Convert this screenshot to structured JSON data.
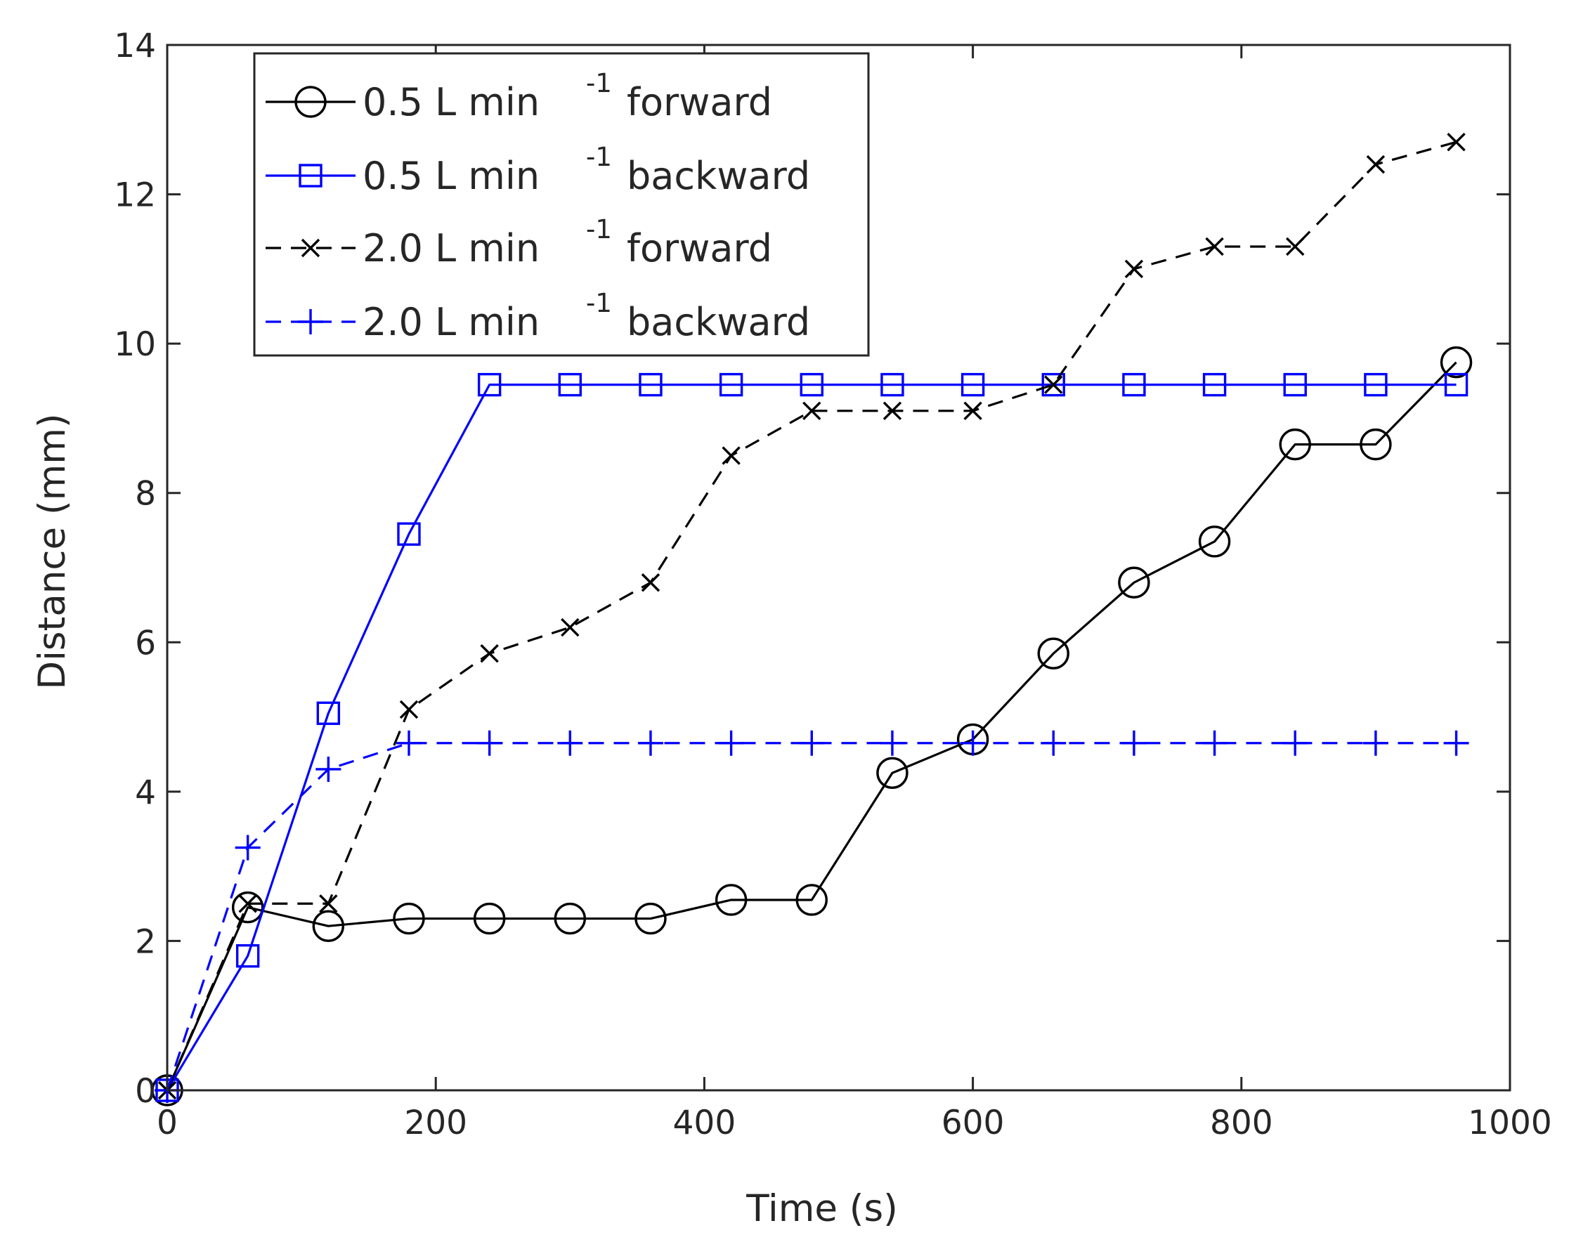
{
  "chart_data": {
    "type": "line",
    "xlabel": "Time (s)",
    "ylabel": "Distance (mm)",
    "xlim": [
      0,
      1000
    ],
    "ylim": [
      0,
      14
    ],
    "xticks": [
      0,
      200,
      400,
      600,
      800,
      1000
    ],
    "yticks": [
      0,
      2,
      4,
      6,
      8,
      10,
      12,
      14
    ],
    "grid": false,
    "legend_position": "top-left",
    "series": [
      {
        "name": "0.5 L min -1 forward",
        "label_main": "0.5 L min",
        "label_sup": "-1",
        "label_tail": "forward",
        "color": "#000000",
        "linestyle": "solid",
        "marker": "circle",
        "x": [
          0,
          60,
          120,
          180,
          240,
          300,
          360,
          420,
          480,
          540,
          600,
          660,
          720,
          780,
          840,
          900,
          960
        ],
        "y": [
          0,
          2.45,
          2.2,
          2.3,
          2.3,
          2.3,
          2.3,
          2.55,
          2.55,
          4.25,
          4.7,
          5.85,
          6.8,
          7.35,
          8.65,
          8.65,
          9.75
        ]
      },
      {
        "name": "0.5 L min -1 backward",
        "label_main": "0.5 L min",
        "label_sup": "-1",
        "label_tail": "backward",
        "color": "#0000ff",
        "linestyle": "solid",
        "marker": "square",
        "x": [
          0,
          60,
          120,
          180,
          240,
          300,
          360,
          420,
          480,
          540,
          600,
          660,
          720,
          780,
          840,
          900,
          960
        ],
        "y": [
          0,
          1.8,
          5.05,
          7.45,
          9.45,
          9.45,
          9.45,
          9.45,
          9.45,
          9.45,
          9.45,
          9.45,
          9.45,
          9.45,
          9.45,
          9.45,
          9.45
        ]
      },
      {
        "name": "2.0 L min -1 forward",
        "label_main": "2.0 L min",
        "label_sup": "-1",
        "label_tail": "forward",
        "color": "#000000",
        "linestyle": "dashed",
        "marker": "x",
        "x": [
          0,
          60,
          120,
          180,
          240,
          300,
          360,
          420,
          480,
          540,
          600,
          660,
          720,
          780,
          840,
          900,
          960
        ],
        "y": [
          0,
          2.5,
          2.5,
          5.1,
          5.85,
          6.2,
          6.8,
          8.5,
          9.1,
          9.1,
          9.1,
          9.45,
          11.0,
          11.3,
          11.3,
          12.4,
          12.7
        ]
      },
      {
        "name": "2.0 L min -1 backward",
        "label_main": "2.0 L min",
        "label_sup": "-1",
        "label_tail": "backward",
        "color": "#0000ff",
        "linestyle": "dashed",
        "marker": "plus",
        "x": [
          0,
          60,
          120,
          180,
          240,
          300,
          360,
          420,
          480,
          540,
          600,
          660,
          720,
          780,
          840,
          900,
          960
        ],
        "y": [
          0,
          3.25,
          4.3,
          4.65,
          4.65,
          4.65,
          4.65,
          4.65,
          4.65,
          4.65,
          4.65,
          4.65,
          4.65,
          4.65,
          4.65,
          4.65,
          4.65
        ]
      }
    ]
  }
}
